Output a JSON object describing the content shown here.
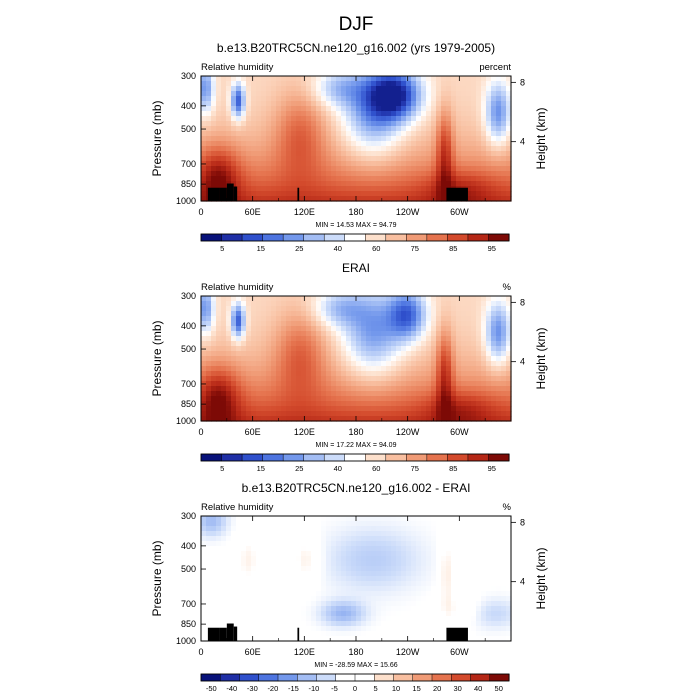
{
  "figure": {
    "title": "DJF"
  },
  "colors": {
    "rh_scale": [
      "#08127a",
      "#1f2fa6",
      "#2f50cc",
      "#4d74e0",
      "#7398ec",
      "#a3bdf4",
      "#ccdcfa",
      "#ffffff",
      "#fde0cc",
      "#f8bfa0",
      "#f09b76",
      "#e5734e",
      "#d34a2c",
      "#b52716",
      "#7d0a06"
    ],
    "diff_scale": [
      "#08127a",
      "#1f2fa6",
      "#2f50cc",
      "#4d74e0",
      "#7398ec",
      "#a3bdf4",
      "#ccdcfa",
      "#ffffff",
      "#ffffff",
      "#fde0cc",
      "#f8bfa0",
      "#f09b76",
      "#e5734e",
      "#d34a2c",
      "#b52716",
      "#7d0a06"
    ],
    "topography": "#000000"
  },
  "panels": [
    {
      "title": "b.e13.B20TRC5CN.ne120_g16.002 (yrs 1979-2005)",
      "left_label": "Relative humidity",
      "right_label": "percent",
      "stats": "MIN = 14.53  MAX = 94.79",
      "colorbar_labels": [
        "5",
        "15",
        "25",
        "40",
        "60",
        "75",
        "85",
        "95"
      ],
      "field_kind": "model"
    },
    {
      "title": "ERAI",
      "left_label": "Relative humidity",
      "right_label": "%",
      "stats": "MIN = 17.22  MAX = 94.09",
      "colorbar_labels": [
        "5",
        "15",
        "25",
        "40",
        "60",
        "75",
        "85",
        "95"
      ],
      "field_kind": "obs"
    },
    {
      "title": "b.e13.B20TRC5CN.ne120_g16.002 - ERAI",
      "left_label": "Relative humidity",
      "right_label": "%",
      "stats": "MIN = -28.59  MAX = 15.66",
      "colorbar_labels": [
        "-50",
        "-40",
        "-30",
        "-20",
        "-15",
        "-10",
        "-5",
        "0",
        "5",
        "10",
        "15",
        "20",
        "30",
        "40",
        "50"
      ],
      "field_kind": "diff"
    }
  ],
  "chart_data": [
    {
      "type": "heatmap",
      "title": "b.e13.B20TRC5CN.ne120_g16.002 (yrs 1979-2005)",
      "xlabel": "",
      "ylabel": "Pressure (mb)",
      "y2label": "Height (km)",
      "x_ticks": [
        "0",
        "60E",
        "120E",
        "180",
        "120W",
        "60W"
      ],
      "x_tick_values": [
        0,
        60,
        120,
        180,
        240,
        300
      ],
      "xlim": [
        0,
        360
      ],
      "y_ticks": [
        "300",
        "400",
        "500",
        "700",
        "850",
        "1000"
      ],
      "y_tick_values": [
        300,
        400,
        500,
        700,
        850,
        1000
      ],
      "ylim": [
        1000,
        300
      ],
      "y2_ticks": [
        "8",
        "4"
      ],
      "y2_tick_values": [
        8,
        4
      ],
      "levels": [
        5,
        10,
        15,
        20,
        25,
        30,
        40,
        50,
        60,
        70,
        75,
        80,
        85,
        90,
        95
      ],
      "min": 14.53,
      "max": 94.79,
      "features": {
        "dry_centers": [
          {
            "lon": 45,
            "p": 400,
            "value": 15
          },
          {
            "lon": 220,
            "p": 360,
            "value": 15
          },
          {
            "lon": 345,
            "p": 430,
            "value": 30
          }
        ],
        "moist_regions": [
          {
            "lon": 115,
            "p": 520,
            "value": 70
          },
          {
            "lon": 280,
            "p": 800,
            "value": 85
          },
          {
            "lon": 20,
            "p": 800,
            "value": 80
          }
        ],
        "boundary_layer_value": 90
      }
    },
    {
      "type": "heatmap",
      "title": "ERAI",
      "xlabel": "",
      "ylabel": "Pressure (mb)",
      "y2label": "Height (km)",
      "x_ticks": [
        "0",
        "60E",
        "120E",
        "180",
        "120W",
        "60W"
      ],
      "x_tick_values": [
        0,
        60,
        120,
        180,
        240,
        300
      ],
      "xlim": [
        0,
        360
      ],
      "y_ticks": [
        "300",
        "400",
        "500",
        "700",
        "850",
        "1000"
      ],
      "y_tick_values": [
        300,
        400,
        500,
        700,
        850,
        1000
      ],
      "ylim": [
        1000,
        300
      ],
      "y2_ticks": [
        "8",
        "4"
      ],
      "y2_tick_values": [
        8,
        4
      ],
      "levels": [
        5,
        10,
        15,
        20,
        25,
        30,
        40,
        50,
        60,
        70,
        75,
        80,
        85,
        90,
        95
      ],
      "min": 17.22,
      "max": 94.09,
      "features": {
        "dry_centers": [
          {
            "lon": 40,
            "p": 400,
            "value": 20
          },
          {
            "lon": 245,
            "p": 410,
            "value": 20
          },
          {
            "lon": 345,
            "p": 420,
            "value": 30
          }
        ],
        "moist_regions": [
          {
            "lon": 110,
            "p": 500,
            "value": 65
          },
          {
            "lon": 280,
            "p": 800,
            "value": 85
          }
        ],
        "boundary_layer_value": 92
      }
    },
    {
      "type": "heatmap",
      "title": "b.e13.B20TRC5CN.ne120_g16.002 - ERAI",
      "xlabel": "",
      "ylabel": "Pressure (mb)",
      "y2label": "Height (km)",
      "x_ticks": [
        "0",
        "60E",
        "120E",
        "180",
        "120W",
        "60W"
      ],
      "x_tick_values": [
        0,
        60,
        120,
        180,
        240,
        300
      ],
      "xlim": [
        0,
        360
      ],
      "y_ticks": [
        "300",
        "400",
        "500",
        "700",
        "850",
        "1000"
      ],
      "y_tick_values": [
        300,
        400,
        500,
        700,
        850,
        1000
      ],
      "ylim": [
        1000,
        300
      ],
      "y2_ticks": [
        "8",
        "4"
      ],
      "y2_tick_values": [
        8,
        4
      ],
      "levels": [
        -50,
        -40,
        -30,
        -20,
        -15,
        -10,
        -5,
        0,
        5,
        10,
        15,
        20,
        30,
        40,
        50
      ],
      "min": -28.59,
      "max": 15.66,
      "features": {
        "negative_regions": [
          {
            "lon": 10,
            "p": 320,
            "value": -20
          },
          {
            "lon": 180,
            "p": 560,
            "value": -10
          },
          {
            "lon": 170,
            "p": 820,
            "value": -15
          }
        ],
        "positive_regions": [
          {
            "lon": 50,
            "p": 500,
            "value": 5
          },
          {
            "lon": 120,
            "p": 500,
            "value": 10
          },
          {
            "lon": 285,
            "p": 600,
            "value": 10
          }
        ]
      }
    }
  ]
}
